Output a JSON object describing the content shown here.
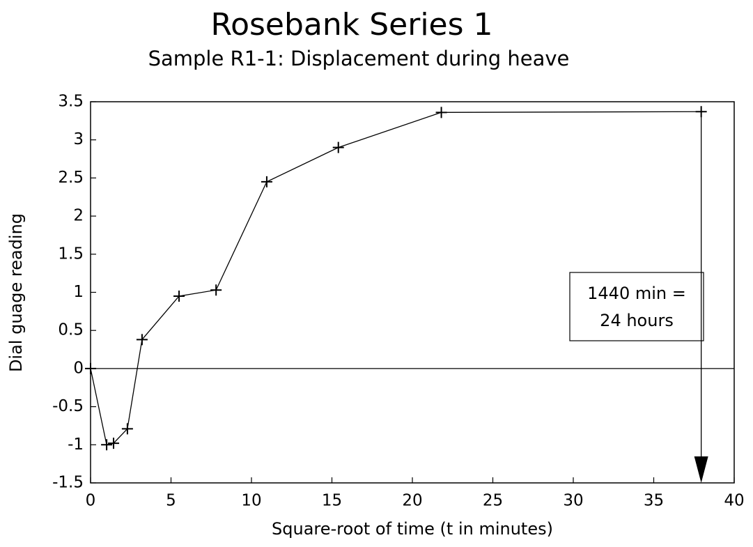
{
  "chart_data": {
    "type": "line",
    "title": "Rosebank Series 1",
    "subtitle": "Sample R1-1: Displacement during heave",
    "x_label": "Square-root of time (t in minutes)",
    "y_label": "Dial guage reading",
    "annotations": [
      "1440 min =",
      "24 hours"
    ],
    "x": [
      0,
      1.0,
      1.43,
      2.29,
      3.2,
      5.5,
      7.8,
      10.95,
      15.4,
      21.8,
      37.95
    ],
    "series": [
      {
        "color": "#000000",
        "values": [
          0,
          -1.0,
          -0.98,
          -0.79,
          0.38,
          0.95,
          1.03,
          2.45,
          2.9,
          3.36,
          3.37
        ]
      }
    ],
    "xlim": [
      0,
      40
    ],
    "xticks": [
      0,
      5,
      10,
      15,
      20,
      25,
      30,
      35,
      40
    ],
    "ylim": [
      -1.5,
      3.5
    ],
    "yticks": [
      -1.5,
      -1,
      -0.5,
      0,
      0.5,
      1,
      1.5,
      2,
      2.5,
      3,
      3.5
    ]
  }
}
